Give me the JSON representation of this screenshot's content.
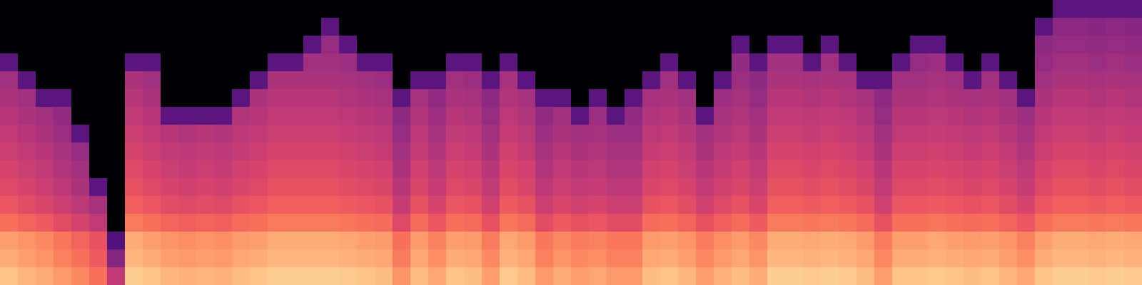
{
  "chart_data": {
    "type": "heatmap",
    "color": "magma",
    "tick_labels": false,
    "value_range": [
      -80,
      0
    ],
    "cells": [
      [
        -80,
        -80,
        -80,
        -80,
        -80,
        -80,
        -80,
        -80,
        -80,
        -80,
        -80,
        -80,
        -80,
        -80,
        -80,
        -80,
        -80,
        -80,
        -80,
        -80,
        -80,
        -80,
        -80,
        -80,
        -80,
        -80,
        -80,
        -80,
        -80,
        -80,
        -80,
        -80,
        -80,
        -80,
        -80,
        -80,
        -80,
        -80,
        -80,
        -80,
        -80,
        -80,
        -80,
        -80,
        -80,
        -80,
        -80,
        -80,
        -80,
        -80,
        -80,
        -80,
        -80,
        -80,
        -80,
        -80,
        -80,
        -80,
        -80,
        -58,
        -58,
        -58,
        -58,
        -58
      ],
      [
        -80,
        -80,
        -80,
        -80,
        -80,
        -80,
        -80,
        -80,
        -80,
        -80,
        -80,
        -80,
        -80,
        -80,
        -80,
        -80,
        -80,
        -80,
        -58,
        -80,
        -80,
        -80,
        -80,
        -80,
        -80,
        -80,
        -80,
        -80,
        -80,
        -80,
        -80,
        -80,
        -80,
        -80,
        -80,
        -80,
        -80,
        -80,
        -80,
        -80,
        -80,
        -80,
        -80,
        -80,
        -80,
        -80,
        -80,
        -80,
        -80,
        -80,
        -80,
        -80,
        -80,
        -80,
        -80,
        -80,
        -80,
        -80,
        -58,
        -48,
        -48,
        -49,
        -48,
        -49
      ],
      [
        -80,
        -80,
        -80,
        -80,
        -80,
        -80,
        -80,
        -80,
        -80,
        -80,
        -80,
        -80,
        -80,
        -80,
        -80,
        -80,
        -80,
        -58,
        -46,
        -58,
        -80,
        -80,
        -80,
        -80,
        -80,
        -80,
        -80,
        -80,
        -80,
        -80,
        -80,
        -80,
        -80,
        -80,
        -80,
        -80,
        -80,
        -80,
        -80,
        -80,
        -80,
        -58,
        -80,
        -58,
        -58,
        -80,
        -58,
        -80,
        -80,
        -80,
        -80,
        -58,
        -58,
        -80,
        -80,
        -80,
        -80,
        -80,
        -48,
        -46,
        -46,
        -47,
        -46,
        -47
      ],
      [
        -58,
        -80,
        -80,
        -80,
        -80,
        -80,
        -80,
        -58,
        -58,
        -80,
        -80,
        -80,
        -80,
        -80,
        -80,
        -58,
        -58,
        -44,
        -44,
        -45,
        -58,
        -58,
        -80,
        -80,
        -80,
        -58,
        -58,
        -80,
        -58,
        -80,
        -80,
        -80,
        -80,
        -80,
        -80,
        -80,
        -80,
        -58,
        -80,
        -80,
        -80,
        -47,
        -58,
        -44,
        -44,
        -58,
        -44,
        -58,
        -80,
        -80,
        -58,
        -46,
        -45,
        -58,
        -80,
        -58,
        -80,
        -80,
        -46,
        -44,
        -44,
        -45,
        -44,
        -45
      ],
      [
        -44,
        -58,
        -80,
        -80,
        -80,
        -80,
        -80,
        -42,
        -44,
        -80,
        -80,
        -80,
        -80,
        -80,
        -58,
        -42,
        -42,
        -42,
        -42,
        -43,
        -44,
        -45,
        -80,
        -58,
        -58,
        -44,
        -45,
        -58,
        -43,
        -58,
        -80,
        -80,
        -80,
        -80,
        -80,
        -80,
        -58,
        -44,
        -58,
        -80,
        -58,
        -45,
        -48,
        -42,
        -42,
        -43,
        -42,
        -43,
        -58,
        -58,
        -44,
        -44,
        -43,
        -44,
        -58,
        -44,
        -58,
        -80,
        -44,
        -42,
        -42,
        -43,
        -42,
        -43
      ],
      [
        -42,
        -44,
        -58,
        -58,
        -80,
        -80,
        -80,
        -40,
        -42,
        -80,
        -80,
        -80,
        -80,
        -58,
        -42,
        -40,
        -40,
        -40,
        -40,
        -41,
        -42,
        -43,
        -58,
        -43,
        -47,
        -42,
        -43,
        -48,
        -41,
        -43,
        -58,
        -58,
        -80,
        -58,
        -80,
        -58,
        -43,
        -42,
        -44,
        -80,
        -45,
        -43,
        -46,
        -40,
        -40,
        -41,
        -40,
        -41,
        -43,
        -48,
        -42,
        -42,
        -41,
        -42,
        -43,
        -42,
        -44,
        -58,
        -42,
        -40,
        -40,
        -41,
        -40,
        -41
      ],
      [
        -40,
        -42,
        -44,
        -47,
        -80,
        -80,
        -80,
        -38,
        -40,
        -58,
        -58,
        -58,
        -58,
        -41,
        -40,
        -38,
        -38,
        -38,
        -38,
        -39,
        -40,
        -41,
        -48,
        -41,
        -45,
        -40,
        -41,
        -46,
        -39,
        -41,
        -47,
        -44,
        -58,
        -45,
        -58,
        -47,
        -41,
        -40,
        -42,
        -58,
        -43,
        -41,
        -44,
        -38,
        -38,
        -39,
        -38,
        -39,
        -41,
        -46,
        -40,
        -40,
        -39,
        -40,
        -41,
        -40,
        -42,
        -45,
        -40,
        -38,
        -38,
        -39,
        -38,
        -39
      ],
      [
        -38,
        -40,
        -42,
        -45,
        -58,
        -80,
        -80,
        -36,
        -38,
        -40,
        -41,
        -40,
        -41,
        -39,
        -38,
        -36,
        -36,
        -36,
        -36,
        -37,
        -38,
        -39,
        -46,
        -39,
        -43,
        -38,
        -39,
        -44,
        -37,
        -39,
        -45,
        -42,
        -44,
        -43,
        -45,
        -45,
        -39,
        -38,
        -40,
        -44,
        -41,
        -39,
        -42,
        -36,
        -36,
        -37,
        -36,
        -37,
        -39,
        -44,
        -38,
        -38,
        -37,
        -38,
        -39,
        -38,
        -40,
        -43,
        -38,
        -36,
        -36,
        -37,
        -36,
        -37
      ],
      [
        -36,
        -38,
        -40,
        -43,
        -46,
        -80,
        -80,
        -34,
        -36,
        -38,
        -39,
        -38,
        -39,
        -37,
        -36,
        -34,
        -34,
        -34,
        -34,
        -35,
        -36,
        -37,
        -44,
        -37,
        -41,
        -36,
        -37,
        -42,
        -35,
        -37,
        -43,
        -40,
        -42,
        -41,
        -43,
        -43,
        -37,
        -36,
        -38,
        -42,
        -39,
        -37,
        -40,
        -34,
        -34,
        -35,
        -34,
        -35,
        -37,
        -42,
        -36,
        -36,
        -35,
        -36,
        -37,
        -36,
        -38,
        -41,
        -36,
        -34,
        -34,
        -35,
        -34,
        -35
      ],
      [
        -34,
        -36,
        -38,
        -41,
        -44,
        -80,
        -80,
        -32,
        -34,
        -36,
        -37,
        -36,
        -37,
        -35,
        -34,
        -32,
        -32,
        -32,
        -32,
        -33,
        -34,
        -35,
        -42,
        -35,
        -39,
        -34,
        -35,
        -40,
        -33,
        -35,
        -41,
        -38,
        -40,
        -39,
        -41,
        -41,
        -35,
        -34,
        -36,
        -40,
        -37,
        -35,
        -38,
        -32,
        -32,
        -33,
        -32,
        -33,
        -35,
        -40,
        -34,
        -34,
        -33,
        -34,
        -35,
        -34,
        -36,
        -39,
        -34,
        -32,
        -32,
        -33,
        -32,
        -33
      ],
      [
        -32,
        -34,
        -36,
        -39,
        -42,
        -58,
        -80,
        -30,
        -32,
        -34,
        -35,
        -34,
        -35,
        -33,
        -32,
        -30,
        -30,
        -30,
        -30,
        -31,
        -32,
        -33,
        -40,
        -33,
        -37,
        -32,
        -33,
        -38,
        -31,
        -33,
        -39,
        -36,
        -38,
        -37,
        -39,
        -39,
        -33,
        -32,
        -34,
        -38,
        -35,
        -33,
        -36,
        -30,
        -30,
        -31,
        -30,
        -31,
        -33,
        -38,
        -32,
        -32,
        -31,
        -32,
        -33,
        -32,
        -34,
        -37,
        -32,
        -30,
        -30,
        -31,
        -30,
        -31
      ],
      [
        -29,
        -31,
        -33,
        -36,
        -39,
        -43,
        -80,
        -27,
        -29,
        -31,
        -32,
        -31,
        -32,
        -30,
        -29,
        -27,
        -27,
        -27,
        -27,
        -28,
        -29,
        -30,
        -37,
        -30,
        -34,
        -29,
        -30,
        -35,
        -28,
        -30,
        -36,
        -33,
        -35,
        -34,
        -36,
        -36,
        -30,
        -29,
        -31,
        -35,
        -32,
        -30,
        -33,
        -27,
        -27,
        -28,
        -27,
        -28,
        -30,
        -35,
        -29,
        -29,
        -28,
        -29,
        -30,
        -29,
        -31,
        -34,
        -29,
        -27,
        -27,
        -28,
        -27,
        -28
      ],
      [
        -24,
        -26,
        -28,
        -31,
        -34,
        -38,
        -80,
        -22,
        -24,
        -26,
        -27,
        -26,
        -27,
        -25,
        -24,
        -22,
        -22,
        -22,
        -22,
        -23,
        -24,
        -25,
        -32,
        -25,
        -29,
        -24,
        -25,
        -30,
        -23,
        -25,
        -31,
        -28,
        -30,
        -29,
        -31,
        -31,
        -25,
        -24,
        -26,
        -30,
        -27,
        -25,
        -28,
        -22,
        -22,
        -23,
        -22,
        -23,
        -25,
        -30,
        -24,
        -24,
        -23,
        -24,
        -25,
        -24,
        -26,
        -29,
        -24,
        -22,
        -22,
        -23,
        -22,
        -23
      ],
      [
        -16,
        -18,
        -20,
        -23,
        -26,
        -30,
        -60,
        -14,
        -16,
        -18,
        -19,
        -18,
        -19,
        -17,
        -16,
        -14,
        -14,
        -14,
        -14,
        -15,
        -16,
        -17,
        -24,
        -17,
        -21,
        -16,
        -17,
        -22,
        -15,
        -17,
        -23,
        -20,
        -22,
        -21,
        -23,
        -23,
        -17,
        -16,
        -18,
        -22,
        -19,
        -17,
        -20,
        -14,
        -14,
        -15,
        -14,
        -15,
        -17,
        -22,
        -16,
        -16,
        -15,
        -16,
        -17,
        -16,
        -18,
        -21,
        -16,
        -14,
        -14,
        -15,
        -14,
        -15
      ],
      [
        -14,
        -16,
        -18,
        -21,
        -24,
        -28,
        -50,
        -12,
        -14,
        -16,
        -17,
        -16,
        -17,
        -15,
        -14,
        -12,
        -12,
        -12,
        -12,
        -13,
        -14,
        -15,
        -22,
        -15,
        -19,
        -14,
        -15,
        -20,
        -13,
        -15,
        -21,
        -18,
        -20,
        -19,
        -21,
        -21,
        -15,
        -14,
        -16,
        -20,
        -17,
        -15,
        -18,
        -12,
        -12,
        -13,
        -12,
        -13,
        -15,
        -20,
        -14,
        -14,
        -13,
        -14,
        -15,
        -14,
        -16,
        -19,
        -14,
        -12,
        -12,
        -13,
        -12,
        -13
      ],
      [
        -10,
        -12,
        -14,
        -17,
        -20,
        -24,
        -38,
        -8,
        -10,
        -12,
        -13,
        -12,
        -13,
        -11,
        -10,
        -8,
        -8,
        -8,
        -8,
        -9,
        -10,
        -11,
        -18,
        -11,
        -15,
        -10,
        -11,
        -16,
        -9,
        -11,
        -17,
        -14,
        -16,
        -15,
        -17,
        -17,
        -11,
        -10,
        -12,
        -16,
        -13,
        -11,
        -14,
        -8,
        -8,
        -9,
        -8,
        -9,
        -11,
        -16,
        -10,
        -10,
        -9,
        -10,
        -11,
        -10,
        -12,
        -15,
        -10,
        -8,
        -8,
        -9,
        -8,
        -9
      ]
    ]
  }
}
